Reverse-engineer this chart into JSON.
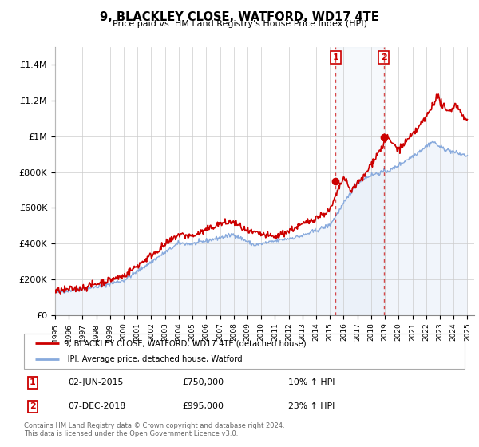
{
  "title": "9, BLACKLEY CLOSE, WATFORD, WD17 4TE",
  "subtitle": "Price paid vs. HM Land Registry's House Price Index (HPI)",
  "ylim": [
    0,
    1500000
  ],
  "xlim_start": 1995.0,
  "xlim_end": 2025.5,
  "red_line_color": "#cc0000",
  "blue_line_color": "#88aadd",
  "blue_fill_color": "#dde8f5",
  "vspan_color": "#dde8f5",
  "annotation_box_color": "#cc0000",
  "grid_color": "#cccccc",
  "sale1_x": 2015.42,
  "sale1_y": 750000,
  "sale2_x": 2018.92,
  "sale2_y": 995000,
  "legend_label_red": "9, BLACKLEY CLOSE, WATFORD, WD17 4TE (detached house)",
  "legend_label_blue": "HPI: Average price, detached house, Watford",
  "sale1_date": "02-JUN-2015",
  "sale1_price": "£750,000",
  "sale1_hpi": "10% ↑ HPI",
  "sale2_date": "07-DEC-2018",
  "sale2_price": "£995,000",
  "sale2_hpi": "23% ↑ HPI",
  "footer_line1": "Contains HM Land Registry data © Crown copyright and database right 2024.",
  "footer_line2": "This data is licensed under the Open Government Licence v3.0.",
  "yticks": [
    0,
    200000,
    400000,
    600000,
    800000,
    1000000,
    1200000,
    1400000
  ],
  "ytick_labels": [
    "£0",
    "£200K",
    "£400K",
    "£600K",
    "£800K",
    "£1M",
    "£1.2M",
    "£1.4M"
  ]
}
